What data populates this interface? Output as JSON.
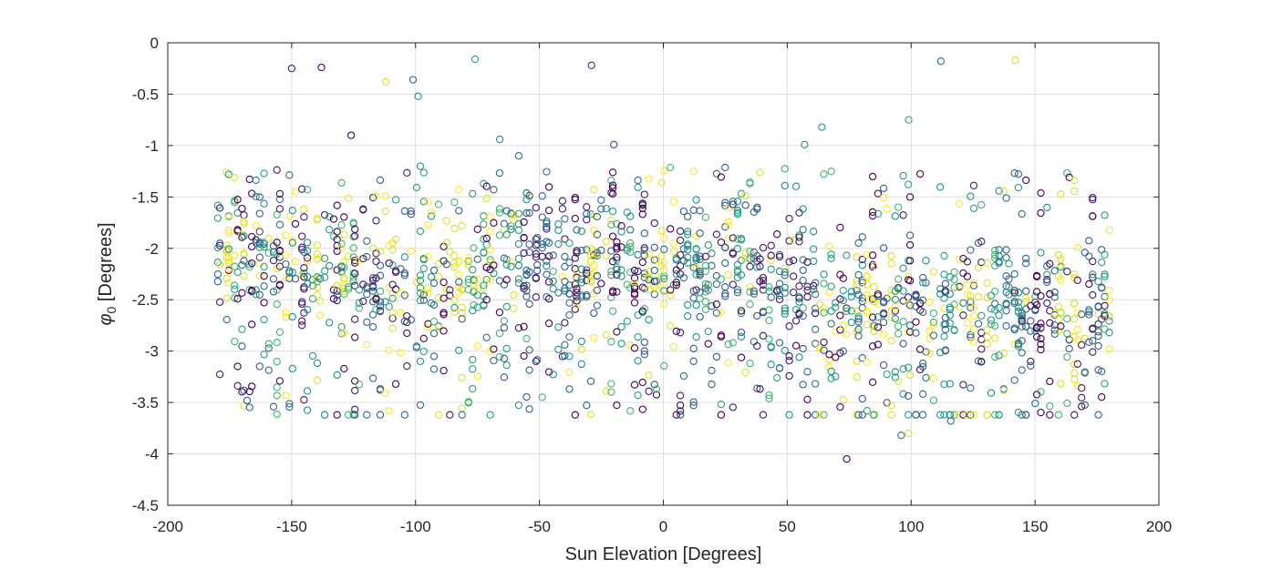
{
  "chart_data": {
    "type": "scatter",
    "title": "",
    "xlabel": "Sun Elevation [Degrees]",
    "ylabel": {
      "symbol": "φ",
      "subscript": "0",
      "units": " [Degrees]"
    },
    "xlim": [
      -200,
      200
    ],
    "ylim": [
      -4.5,
      0
    ],
    "xticks": [
      -200,
      -150,
      -100,
      -50,
      0,
      50,
      100,
      150,
      200
    ],
    "yticks": [
      0,
      -0.5,
      -1,
      -1.5,
      -2,
      -2.5,
      -3,
      -3.5,
      -4,
      -4.5
    ],
    "xtick_labels": [
      "-200",
      "-150",
      "-100",
      "-50",
      "0",
      "50",
      "100",
      "150",
      "200"
    ],
    "ytick_labels": [
      "0",
      "-0.5",
      "-1",
      "-1.5",
      "-2",
      "-2.5",
      "-3",
      "-3.5",
      "-4",
      "-4.5"
    ],
    "grid": true,
    "marker": "open-circle",
    "colormap": [
      "#440154",
      "#3b528b",
      "#21908d",
      "#5dc963",
      "#fde725"
    ],
    "x_range_of_points": [
      -180,
      180
    ],
    "outliers": [
      {
        "x": -150,
        "y": -0.25,
        "c": 0.1
      },
      {
        "x": -138,
        "y": -0.24,
        "c": 0.0
      },
      {
        "x": -112,
        "y": -0.38,
        "c": 0.95
      },
      {
        "x": -101,
        "y": -0.36,
        "c": 0.35
      },
      {
        "x": -99,
        "y": -0.52,
        "c": 0.5
      },
      {
        "x": -76,
        "y": -0.16,
        "c": 0.55
      },
      {
        "x": -29,
        "y": -0.22,
        "c": 0.15
      },
      {
        "x": 112,
        "y": -0.18,
        "c": 0.35
      },
      {
        "x": 142,
        "y": -0.17,
        "c": 0.95
      },
      {
        "x": 64,
        "y": -0.82,
        "c": 0.5
      },
      {
        "x": 99,
        "y": -0.75,
        "c": 0.6
      },
      {
        "x": -126,
        "y": -0.9,
        "c": 0.0
      },
      {
        "x": -66,
        "y": -0.94,
        "c": 0.5
      },
      {
        "x": -20,
        "y": -0.99,
        "c": 0.25
      },
      {
        "x": 57,
        "y": -0.99,
        "c": 0.5
      },
      {
        "x": 74,
        "y": -4.05,
        "c": 0.0
      },
      {
        "x": 96,
        "y": -3.82,
        "c": 0.4
      },
      {
        "x": 99,
        "y": -3.8,
        "c": 0.95
      },
      {
        "x": 116,
        "y": -3.68,
        "c": 0.4
      },
      {
        "x": -168,
        "y": -3.48,
        "c": 0.3
      }
    ]
  }
}
